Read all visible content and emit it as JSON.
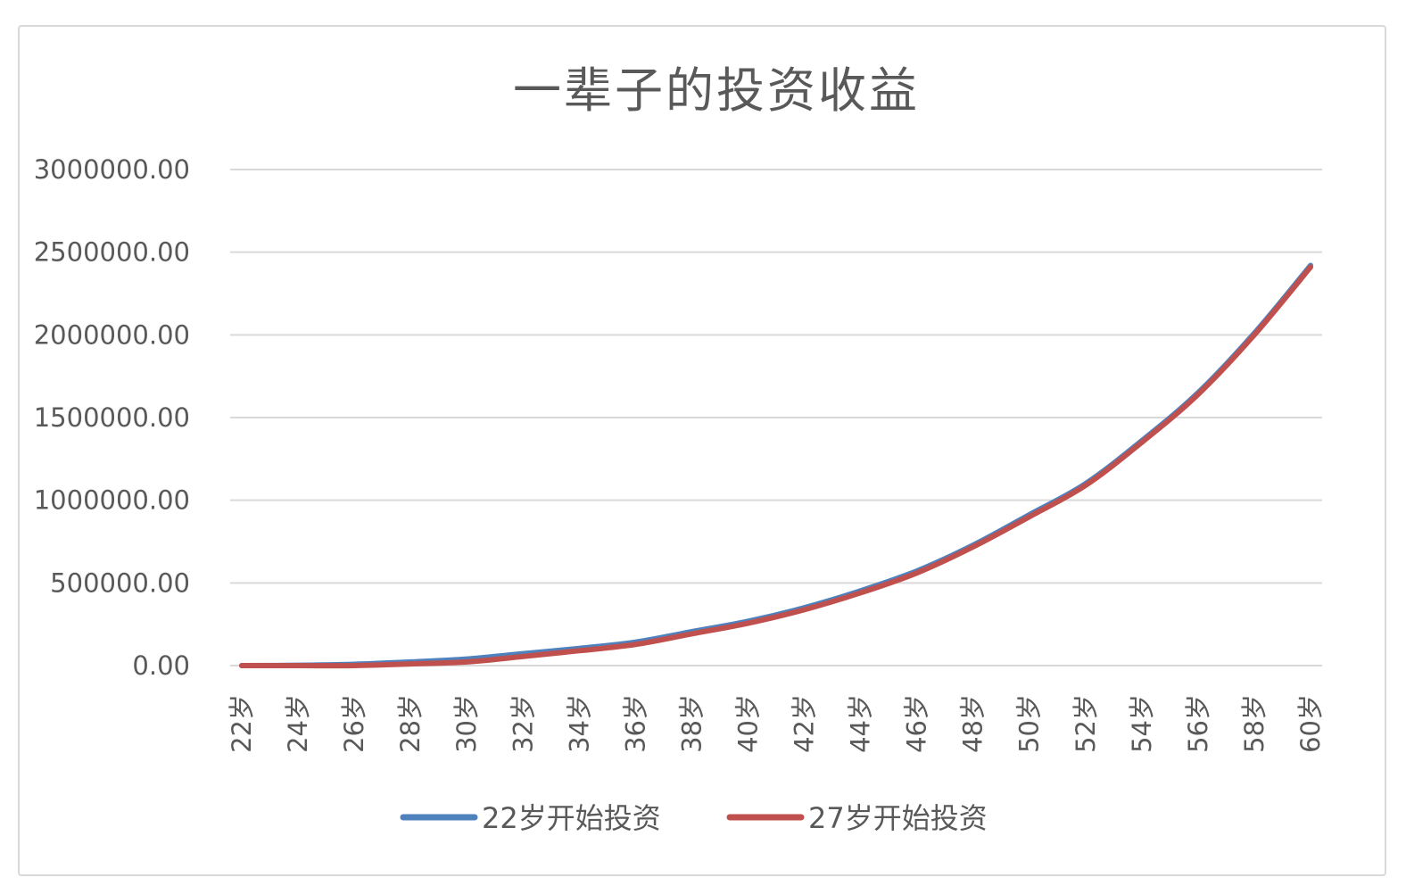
{
  "chart_data": {
    "type": "line",
    "title": "一辈子的投资收益",
    "xlabel": "",
    "ylabel": "",
    "ylim": [
      0,
      3000000
    ],
    "y_ticks": [
      "0.00",
      "500000.00",
      "1000000.00",
      "1500000.00",
      "2000000.00",
      "2500000.00",
      "3000000.00"
    ],
    "categories": [
      "22岁",
      "24岁",
      "26岁",
      "28岁",
      "30岁",
      "32岁",
      "34岁",
      "36岁",
      "38岁",
      "40岁",
      "42岁",
      "44岁",
      "46岁",
      "48岁",
      "50岁",
      "52岁",
      "54岁",
      "56岁",
      "58岁",
      "60岁"
    ],
    "grid": true,
    "legend_position": "bottom",
    "series": [
      {
        "name": "22岁开始投资",
        "color": "#4f81bd",
        "values": [
          0,
          2000,
          8000,
          22000,
          40000,
          72000,
          104000,
          142000,
          205000,
          268000,
          350000,
          452000,
          572000,
          728000,
          912000,
          1100000,
          1360000,
          1650000,
          2010000,
          2420000
        ]
      },
      {
        "name": "27岁开始投资",
        "color": "#c0504d",
        "values": [
          0,
          0,
          0,
          10000,
          22000,
          55000,
          90000,
          128000,
          192000,
          256000,
          338000,
          440000,
          560000,
          718000,
          900000,
          1090000,
          1350000,
          1640000,
          2000000,
          2410000
        ]
      }
    ]
  }
}
